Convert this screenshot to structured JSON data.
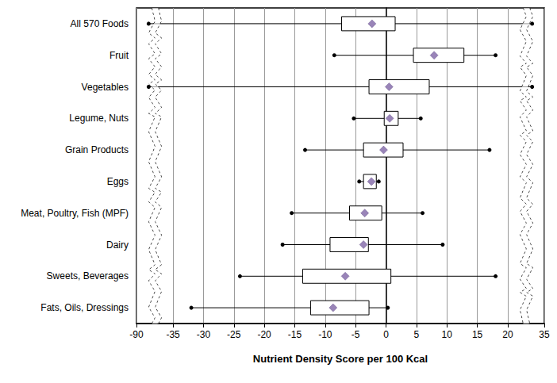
{
  "chart_data": {
    "type": "boxplot",
    "orientation": "horizontal",
    "x_label": "Nutrient Density Score per 100 Kcal",
    "categories": [
      "All 570 Foods",
      "Fruit",
      "Vegetables",
      "Legume, Nuts",
      "Grain Products",
      "Eggs",
      "Meat, Poultry, Fish (MPF)",
      "Dairy",
      "Sweets, Beverages",
      "Fats, Oils, Dressings"
    ],
    "min": [
      -88,
      -8.5,
      -88,
      -5.3,
      -13.3,
      -4.4,
      -15.5,
      -17,
      -24,
      -32
    ],
    "q1": [
      -7.3,
      4.5,
      -2.8,
      -0.3,
      -3.7,
      -3.7,
      -6,
      -9.2,
      -13.7,
      -12.4
    ],
    "q3": [
      1.5,
      12.8,
      7.1,
      2,
      2.8,
      -1.6,
      -0.7,
      -2.9,
      0.8,
      -2.8
    ],
    "max": [
      33,
      18,
      33,
      5.7,
      17,
      -1.2,
      6,
      9.3,
      18,
      0.3
    ],
    "mean": [
      -2.3,
      7.9,
      0.5,
      0.6,
      -0.4,
      -2.4,
      -3.5,
      -3.7,
      -6.7,
      -8.7
    ],
    "color": "#7f65a6",
    "marker": "diamond",
    "xlim": [
      -90,
      35
    ],
    "xticks": [
      -90,
      -35,
      -30,
      -25,
      -20,
      -15,
      -10,
      -5,
      0,
      5,
      10,
      15,
      20,
      35
    ],
    "grid": true
  }
}
